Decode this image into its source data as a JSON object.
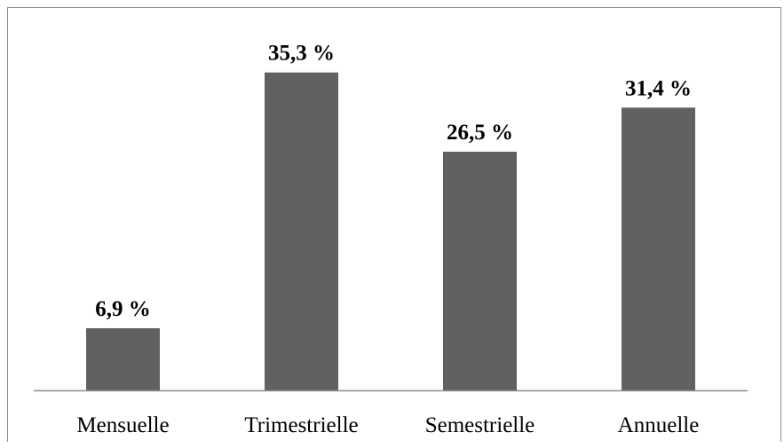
{
  "chart_data": {
    "type": "bar",
    "categories": [
      "Mensuelle",
      "Trimestrielle",
      "Semestrielle",
      "Annuelle"
    ],
    "values": [
      6.9,
      35.3,
      26.5,
      31.4
    ],
    "value_labels": [
      "6,9 %",
      "35,3 %",
      "26,5 %",
      "31,4 %"
    ],
    "title": "",
    "xlabel": "",
    "ylabel": "",
    "ylim": [
      0,
      40
    ],
    "grid": false,
    "legend": "none",
    "colors": {
      "bar": "#616161",
      "axis": "#8c8c8c",
      "border": "#8c8c8c"
    }
  }
}
